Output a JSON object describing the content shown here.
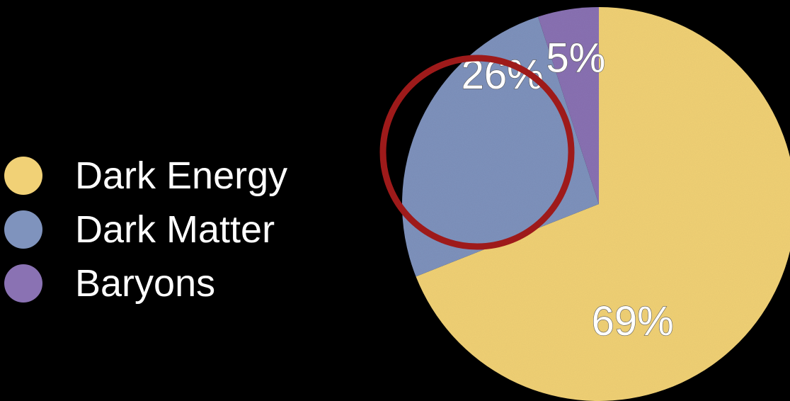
{
  "chart_data": {
    "type": "pie",
    "title": "",
    "legend_position": "left",
    "slices": [
      {
        "name": "Dark Energy",
        "value": 69,
        "label": "69%",
        "color": "#f1d176"
      },
      {
        "name": "Dark Matter",
        "value": 26,
        "label": "26%",
        "color": "#7f93bd"
      },
      {
        "name": "Baryons",
        "value": 5,
        "label": "5%",
        "color": "#8a72b3"
      }
    ],
    "annotation": {
      "type": "circle-highlight",
      "target": "Dark Matter",
      "color": "#9e1a1a"
    }
  }
}
